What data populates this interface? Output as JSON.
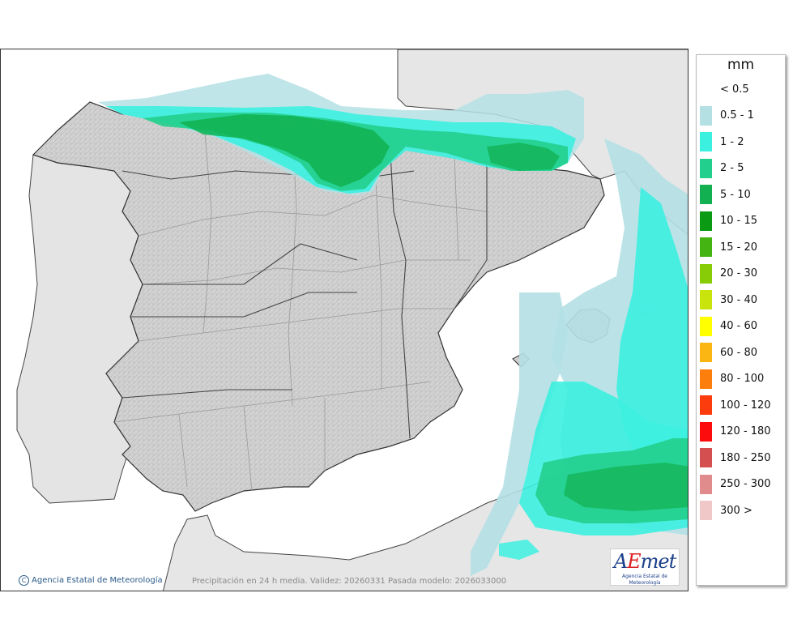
{
  "legend": {
    "unit": "mm",
    "classes": [
      {
        "label": "< 0.5",
        "color": "#ffffff"
      },
      {
        "label": "0.5 - 1",
        "color": "#b4e0e4"
      },
      {
        "label": "1 - 2",
        "color": "#3cf0e0"
      },
      {
        "label": "2 - 5",
        "color": "#22cf8c"
      },
      {
        "label": "5 - 10",
        "color": "#12b050"
      },
      {
        "label": "10 - 15",
        "color": "#0a9a14"
      },
      {
        "label": "15 - 20",
        "color": "#44b412"
      },
      {
        "label": "20 - 30",
        "color": "#88cc08"
      },
      {
        "label": "30 - 40",
        "color": "#c8e40c"
      },
      {
        "label": "40 - 60",
        "color": "#ffff00"
      },
      {
        "label": "60 - 80",
        "color": "#fcb614"
      },
      {
        "label": "80 - 100",
        "color": "#fc7e0c"
      },
      {
        "label": "100 - 120",
        "color": "#fc3c0c"
      },
      {
        "label": "120 - 180",
        "color": "#fc0c0c"
      },
      {
        "label": "180 - 250",
        "color": "#d45050"
      },
      {
        "label": "250 - 300",
        "color": "#e08c8c"
      },
      {
        "label": "300 >",
        "color": "#f0c8c8"
      }
    ]
  },
  "footer": {
    "agency": "Agencia Estatal de Meteorología",
    "caption": "Precipitación en 24 h media. Validez: 20260331 Pasada modelo: 2026033000",
    "logo_text": "AEmet",
    "logo_sub": "Agencia Estatal de Meteorología",
    "copyright_icon": "copyright-icon"
  },
  "colors": {
    "sea": "#ffffff",
    "land": "#d6d6d6",
    "foreign_land": "#e8e8e8",
    "border": "#333333",
    "province_border": "#9a9a9a"
  }
}
